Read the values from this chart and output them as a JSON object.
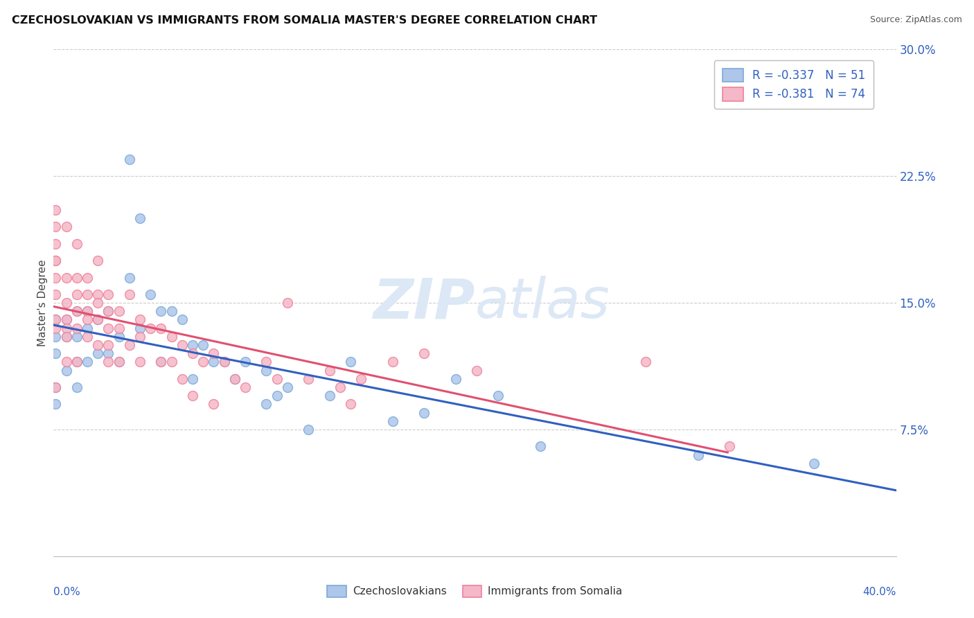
{
  "title": "CZECHOSLOVAKIAN VS IMMIGRANTS FROM SOMALIA MASTER'S DEGREE CORRELATION CHART",
  "source": "Source: ZipAtlas.com",
  "ylabel": "Master's Degree",
  "ylabel_right_ticks": [
    "30.0%",
    "22.5%",
    "15.0%",
    "7.5%"
  ],
  "ylabel_right_vals": [
    0.3,
    0.225,
    0.15,
    0.075
  ],
  "legend_blue_label": "Czechoslovakians",
  "legend_pink_label": "Immigrants from Somalia",
  "legend_blue_r": "R = -0.337",
  "legend_blue_n": "N = 51",
  "legend_pink_r": "R = -0.381",
  "legend_pink_n": "N = 74",
  "blue_fill": "#aec6ea",
  "pink_fill": "#f4b8c8",
  "blue_edge": "#7aaad8",
  "pink_edge": "#f08098",
  "blue_line_color": "#3060c0",
  "pink_line_color": "#e05070",
  "text_blue": "#3060c0",
  "watermark_color": "#dce8f5",
  "xlim": [
    0.0,
    0.4
  ],
  "ylim": [
    0.0,
    0.3
  ],
  "blue_x": [
    0.001,
    0.001,
    0.001,
    0.001,
    0.001,
    0.006,
    0.006,
    0.006,
    0.011,
    0.011,
    0.011,
    0.011,
    0.016,
    0.016,
    0.016,
    0.021,
    0.021,
    0.026,
    0.026,
    0.031,
    0.031,
    0.036,
    0.036,
    0.041,
    0.041,
    0.046,
    0.051,
    0.051,
    0.056,
    0.061,
    0.066,
    0.066,
    0.071,
    0.076,
    0.081,
    0.086,
    0.091,
    0.101,
    0.101,
    0.106,
    0.111,
    0.121,
    0.131,
    0.141,
    0.161,
    0.176,
    0.191,
    0.211,
    0.231,
    0.306,
    0.361
  ],
  "blue_y": [
    0.14,
    0.13,
    0.12,
    0.1,
    0.09,
    0.14,
    0.13,
    0.11,
    0.145,
    0.13,
    0.115,
    0.1,
    0.145,
    0.135,
    0.115,
    0.14,
    0.12,
    0.145,
    0.12,
    0.13,
    0.115,
    0.165,
    0.235,
    0.2,
    0.135,
    0.155,
    0.145,
    0.115,
    0.145,
    0.14,
    0.125,
    0.105,
    0.125,
    0.115,
    0.115,
    0.105,
    0.115,
    0.11,
    0.09,
    0.095,
    0.1,
    0.075,
    0.095,
    0.115,
    0.08,
    0.085,
    0.105,
    0.095,
    0.065,
    0.06,
    0.055
  ],
  "pink_x": [
    0.001,
    0.001,
    0.001,
    0.001,
    0.001,
    0.001,
    0.001,
    0.001,
    0.001,
    0.001,
    0.006,
    0.006,
    0.006,
    0.006,
    0.006,
    0.006,
    0.006,
    0.011,
    0.011,
    0.011,
    0.011,
    0.011,
    0.011,
    0.016,
    0.016,
    0.016,
    0.016,
    0.016,
    0.021,
    0.021,
    0.021,
    0.021,
    0.021,
    0.026,
    0.026,
    0.026,
    0.026,
    0.026,
    0.031,
    0.031,
    0.031,
    0.036,
    0.036,
    0.041,
    0.041,
    0.041,
    0.046,
    0.051,
    0.051,
    0.056,
    0.056,
    0.061,
    0.061,
    0.066,
    0.066,
    0.071,
    0.076,
    0.076,
    0.081,
    0.086,
    0.091,
    0.101,
    0.106,
    0.111,
    0.121,
    0.131,
    0.136,
    0.141,
    0.146,
    0.161,
    0.176,
    0.201,
    0.281,
    0.321
  ],
  "pink_y": [
    0.205,
    0.195,
    0.185,
    0.175,
    0.175,
    0.165,
    0.155,
    0.14,
    0.135,
    0.1,
    0.195,
    0.165,
    0.15,
    0.14,
    0.135,
    0.13,
    0.115,
    0.185,
    0.165,
    0.155,
    0.145,
    0.135,
    0.115,
    0.165,
    0.155,
    0.145,
    0.14,
    0.13,
    0.175,
    0.155,
    0.15,
    0.14,
    0.125,
    0.155,
    0.145,
    0.135,
    0.125,
    0.115,
    0.145,
    0.135,
    0.115,
    0.155,
    0.125,
    0.14,
    0.13,
    0.115,
    0.135,
    0.135,
    0.115,
    0.13,
    0.115,
    0.125,
    0.105,
    0.12,
    0.095,
    0.115,
    0.12,
    0.09,
    0.115,
    0.105,
    0.1,
    0.115,
    0.105,
    0.15,
    0.105,
    0.11,
    0.1,
    0.09,
    0.105,
    0.115,
    0.12,
    0.11,
    0.115,
    0.065
  ]
}
